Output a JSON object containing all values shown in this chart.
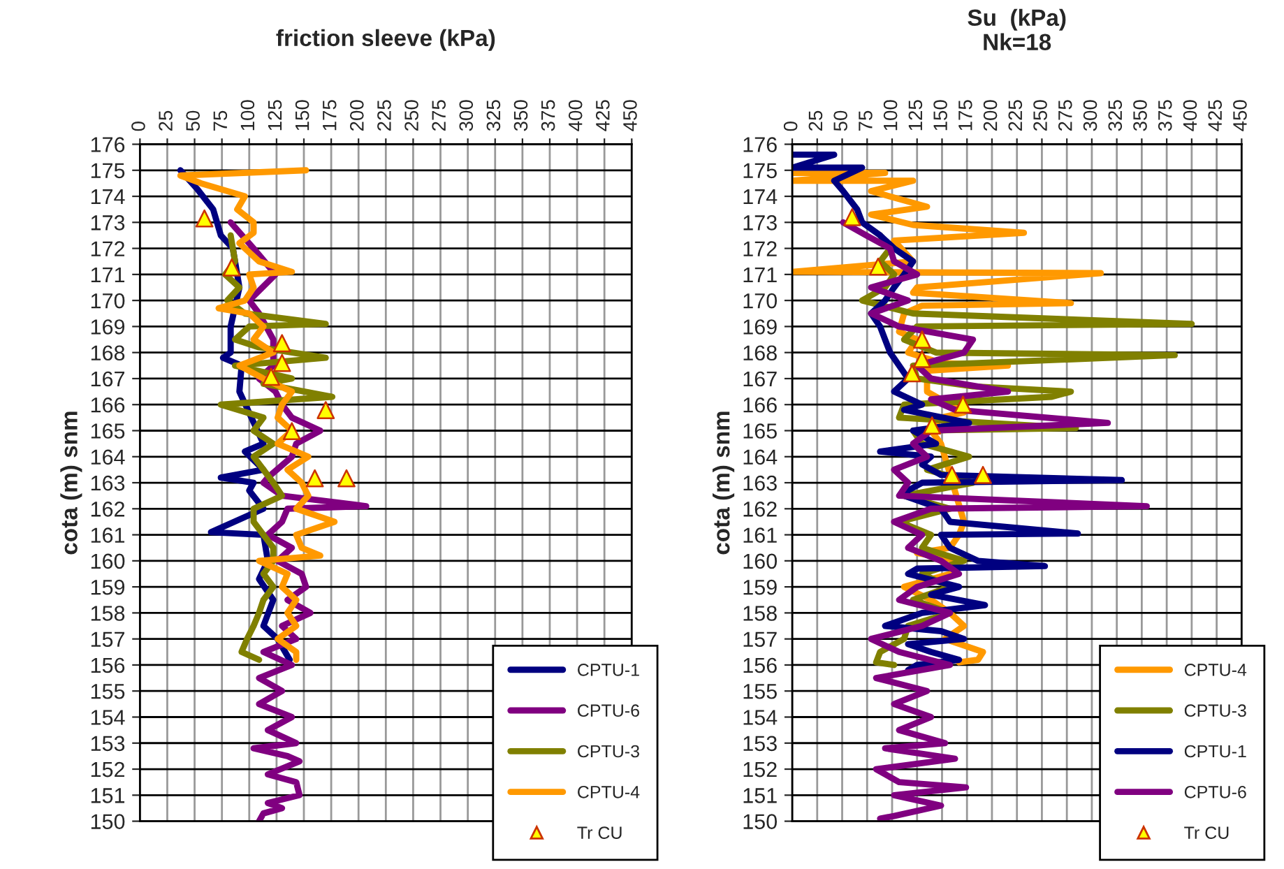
{
  "chart_data": [
    {
      "type": "line",
      "title": "friction sleeve (kPa)",
      "ylabel": "cota (m) snm",
      "xlim": [
        0,
        450
      ],
      "xticks": [
        0,
        25,
        50,
        75,
        100,
        125,
        150,
        175,
        200,
        225,
        250,
        275,
        300,
        325,
        350,
        375,
        400,
        425,
        450
      ],
      "ylim": [
        150,
        176
      ],
      "yticks": [
        150,
        151,
        152,
        153,
        154,
        155,
        156,
        157,
        158,
        159,
        160,
        161,
        162,
        163,
        164,
        165,
        166,
        167,
        168,
        169,
        170,
        171,
        172,
        173,
        174,
        175,
        176
      ],
      "grid": true,
      "legend": "bottom right",
      "series": [
        {
          "name": "CPTU-1",
          "color": "#000080",
          "x": [
            37,
            52,
            67,
            74,
            85,
            87,
            91,
            83,
            83,
            76,
            93,
            91,
            102,
            113,
            96,
            113,
            74,
            104,
            100,
            113,
            65,
            113,
            117,
            109,
            122,
            113,
            126,
            137
          ],
          "values": [
            175,
            174.3,
            173.5,
            172.5,
            172,
            171.5,
            170.5,
            169,
            168,
            167.8,
            167.5,
            166.5,
            165.5,
            164.5,
            164.2,
            163.5,
            163.2,
            163,
            162.7,
            162,
            161.1,
            161,
            160,
            159.3,
            158.5,
            157.5,
            157,
            156.2
          ]
        },
        {
          "name": "CPTU-6",
          "color": "#800080",
          "x": [
            83,
            104,
            124,
            100,
            109,
            122,
            122,
            109,
            124,
            130,
            139,
            165,
            143,
            139,
            117,
            113,
            130,
            207,
            135,
            130,
            117,
            139,
            126,
            148,
            152,
            135,
            156,
            130,
            143,
            113,
            139,
            109,
            130,
            109,
            139,
            117,
            143,
            104,
            135,
            146,
            117,
            143,
            146,
            117,
            130,
            113,
            109
          ],
          "values": [
            173,
            172,
            171,
            170,
            169.5,
            168.5,
            167.5,
            167,
            166.5,
            166,
            165.5,
            165,
            164.5,
            164,
            163.2,
            163,
            162.5,
            162.1,
            162,
            161.5,
            161,
            160.5,
            160,
            159.5,
            159,
            158.5,
            158,
            157.5,
            157,
            156.5,
            156,
            155.5,
            155,
            154.5,
            154,
            153.5,
            153,
            152.8,
            152.5,
            152.3,
            151.8,
            151.5,
            151,
            150.7,
            150.5,
            150.3,
            150
          ]
        },
        {
          "name": "CPTU-3",
          "color": "#808000",
          "x": [
            83,
            87,
            78,
            91,
            80,
            96,
            170,
            100,
            87,
            109,
            170,
            87,
            139,
            113,
            176,
            74,
            113,
            104,
            122,
            104,
            122,
            130,
            104,
            104,
            113,
            122,
            122,
            113,
            122,
            113,
            109,
            104,
            98,
            93,
            109
          ],
          "values": [
            172.5,
            171.5,
            171,
            170.5,
            170,
            169.5,
            169.1,
            169,
            168.5,
            168.2,
            167.8,
            167.5,
            167,
            166.8,
            166.3,
            166,
            165.5,
            165,
            164.5,
            164,
            163,
            162.5,
            162,
            161.5,
            161,
            160.5,
            160,
            159.5,
            159,
            158.5,
            158,
            157.5,
            157,
            156.5,
            156.2
          ]
        },
        {
          "name": "CPTU-4",
          "color": "#ff9900",
          "x": [
            152,
            37,
            56,
            96,
            89,
            104,
            104,
            91,
            109,
            139,
            100,
            104,
            96,
            72,
            100,
            113,
            104,
            122,
            91,
            113,
            139,
            130,
            126,
            139,
            126,
            154,
            135,
            148,
            154,
            143,
            178,
            143,
            148,
            165,
            109,
            135,
            130,
            143,
            135,
            143,
            126,
            143,
            143
          ],
          "values": [
            175,
            174.8,
            174.5,
            174,
            173.5,
            173,
            172.6,
            172.2,
            171.5,
            171.1,
            171,
            170.5,
            170,
            169.7,
            169.5,
            169,
            168.5,
            168,
            167.5,
            167,
            166.5,
            166,
            165.5,
            165,
            164.5,
            164,
            163.5,
            163,
            162.5,
            162,
            161.5,
            161,
            160.5,
            160.2,
            160,
            159.5,
            159,
            158.5,
            158,
            157.5,
            157,
            156.5,
            156.2
          ]
        },
        {
          "name": "Tr CU",
          "type": "scatter",
          "marker": "triangle",
          "color": "#ffff00",
          "x": [
            59,
            84,
            130,
            130,
            120,
            170,
            139,
            160,
            189
          ],
          "values": [
            173.15,
            171.27,
            168.36,
            167.6,
            167.07,
            165.79,
            164.98,
            163.17,
            163.17
          ]
        }
      ]
    },
    {
      "type": "line",
      "title": "Su  (kPa)",
      "subtitle": "Nk=18",
      "ylabel": "cota (m) snm",
      "xlim": [
        0,
        450
      ],
      "xticks": [
        0,
        25,
        50,
        75,
        100,
        125,
        150,
        175,
        200,
        225,
        250,
        275,
        300,
        325,
        350,
        375,
        400,
        425,
        450
      ],
      "ylim": [
        150,
        176
      ],
      "yticks": [
        150,
        151,
        152,
        153,
        154,
        155,
        156,
        157,
        158,
        159,
        160,
        161,
        162,
        163,
        164,
        165,
        166,
        167,
        168,
        169,
        170,
        171,
        172,
        173,
        174,
        175,
        176
      ],
      "grid": true,
      "legend": "bottom right",
      "series": [
        {
          "name": "CPTU-4",
          "color": "#ff9900",
          "x": [
            0,
            93,
            0,
            121,
            79,
            135,
            79,
            121,
            232,
            102,
            121,
            0,
            309,
            125,
            121,
            279,
            130,
            112,
            107,
            125,
            116,
            149,
            216,
            135,
            135,
            158,
            172,
            149,
            139,
            149,
            172,
            167,
            158,
            125,
            167,
            158,
            112,
            139,
            158,
            172,
            153,
            191,
            186,
            167
          ],
          "values": [
            174.9,
            174.9,
            174.6,
            174.6,
            174.2,
            173.6,
            173.3,
            172.9,
            172.6,
            172.3,
            171.5,
            171.1,
            171.05,
            170.5,
            170.3,
            169.9,
            169.8,
            169.5,
            168.8,
            168.5,
            168,
            167.6,
            167.5,
            167.3,
            166.5,
            166,
            165.7,
            165.5,
            165,
            164.5,
            161.5,
            161,
            160.5,
            160.3,
            160,
            159.5,
            159,
            158.5,
            158,
            157.5,
            157,
            156.5,
            156.2,
            156.1
          ]
        },
        {
          "name": "CPTU-3",
          "color": "#808000",
          "x": [
            88,
            98,
            88,
            102,
            93,
            70,
            121,
            400,
            125,
            112,
            144,
            383,
            121,
            125,
            181,
            279,
            260,
            112,
            107,
            284,
            121,
            130,
            177,
            135,
            181,
            112,
            158,
            107,
            139,
            130,
            172,
            130,
            158,
            121,
            158,
            116,
            112,
            88,
            84,
            102
          ],
          "values": [
            172.5,
            172,
            171.5,
            171,
            170.5,
            170,
            169.5,
            169.1,
            169,
            168.5,
            168,
            167.9,
            167.5,
            167,
            166.7,
            166.5,
            166.3,
            166,
            165.5,
            165.1,
            165,
            164.5,
            164,
            163.5,
            163,
            162.5,
            162,
            161.5,
            161,
            160.5,
            160,
            159.5,
            159,
            158.5,
            158,
            157.5,
            157,
            156.5,
            156.1,
            156
          ]
        },
        {
          "name": "CPTU-1",
          "color": "#000080",
          "x": [
            0,
            42,
            0,
            70,
            42,
            51,
            65,
            70,
            88,
            102,
            121,
            112,
            102,
            93,
            79,
            88,
            93,
            98,
            107,
            116,
            102,
            130,
            112,
            177,
            121,
            144,
            88,
            139,
            130,
            149,
            330,
            130,
            116,
            112,
            149,
            158,
            286,
            149,
            158,
            186,
            253,
            125,
            116,
            167,
            139,
            193,
            130,
            93,
            149,
            172,
            116,
            139,
            167,
            125,
            116
          ],
          "values": [
            175.6,
            175.6,
            175.1,
            175.1,
            174.6,
            174.2,
            173.5,
            173,
            172.5,
            172,
            171.5,
            171,
            170.5,
            170,
            169.5,
            169,
            168.5,
            168,
            167.5,
            167,
            166.5,
            166,
            165.8,
            165.3,
            165,
            164.5,
            164.2,
            164,
            163.7,
            163.3,
            163.1,
            163,
            162.7,
            162.5,
            162,
            161.5,
            161.05,
            161,
            160.5,
            160,
            159.8,
            159.7,
            159.5,
            159,
            158.7,
            158.3,
            158,
            157.5,
            157.3,
            157,
            156.8,
            156.5,
            156.2,
            156,
            155.8
          ]
        },
        {
          "name": "CPTU-6",
          "color": "#800080",
          "x": [
            51,
            74,
            98,
            102,
            125,
            79,
            116,
            79,
            107,
            181,
            172,
            125,
            139,
            216,
            139,
            163,
            316,
            139,
            121,
            135,
            102,
            116,
            107,
            355,
            139,
            102,
            130,
            116,
            149,
            167,
            125,
            107,
            158,
            130,
            79,
            107,
            158,
            84,
            135,
            102,
            139,
            107,
            153,
            93,
            163,
            84,
            107,
            174,
            102,
            149,
            102,
            88
          ],
          "values": [
            173,
            172.5,
            172,
            171.5,
            171,
            170.5,
            170,
            169.5,
            169,
            168.5,
            168,
            167.5,
            167,
            166.5,
            166.2,
            165.8,
            165.3,
            165,
            164.5,
            164,
            163.5,
            163,
            162.5,
            162.1,
            162,
            161.5,
            161,
            160.5,
            160,
            159.5,
            159,
            158.5,
            158,
            157.5,
            157,
            156.5,
            156,
            155.5,
            155,
            154.5,
            154,
            153.5,
            153,
            152.8,
            152.4,
            152,
            151.5,
            151.3,
            151,
            150.6,
            150.2,
            150.1
          ]
        },
        {
          "name": "Tr CU",
          "type": "scatter",
          "marker": "triangle",
          "color": "#ffff00",
          "x": [
            60,
            86,
            130,
            130,
            120,
            171,
            140,
            160,
            191
          ],
          "values": [
            173.2,
            171.3,
            168.5,
            167.75,
            167.2,
            166.0,
            165.2,
            163.3,
            163.3
          ]
        }
      ]
    }
  ]
}
